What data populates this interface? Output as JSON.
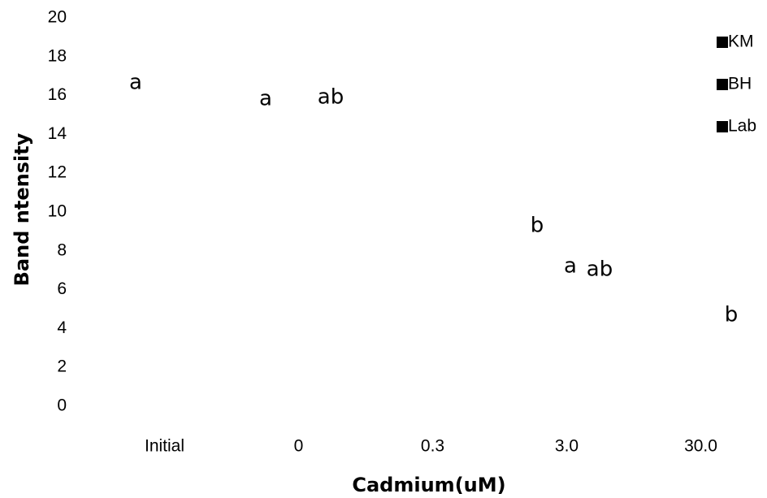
{
  "chart_data": {
    "type": "bar",
    "x_label": "Cadmium(uM)",
    "y_label": "Band ntensity",
    "categories": [
      "Initial",
      "0",
      "0.3",
      "3.0",
      "30.0"
    ],
    "series": [
      {
        "name": "KM",
        "color": "#000000"
      },
      {
        "name": "BH",
        "color": "#000000"
      },
      {
        "name": "Lab",
        "color": "#000000"
      }
    ],
    "annotations": [
      "a",
      "a",
      "ab",
      "b",
      "a",
      "ab",
      "b"
    ],
    "ylim": [
      0,
      20
    ],
    "yticks": [
      0,
      2,
      4,
      6,
      8,
      10,
      12,
      14,
      16,
      18,
      20
    ],
    "legend": "right"
  }
}
